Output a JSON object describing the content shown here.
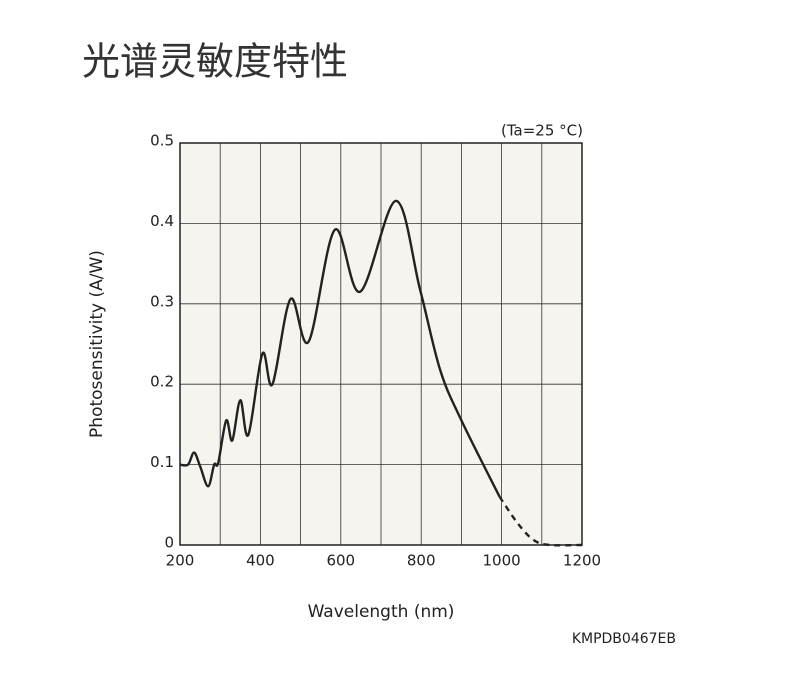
{
  "chart_data": {
    "type": "line",
    "title": "光谱灵敏度特性",
    "annotation": "(Ta=25 °C)",
    "code": "KMPDB0467EB",
    "xlabel": "Wavelength (nm)",
    "ylabel": "Photosensitivity (A/W)",
    "xlim": [
      200,
      1200
    ],
    "xticks": [
      200,
      400,
      600,
      800,
      1000,
      1200
    ],
    "x_minor_grid": [
      300,
      500,
      700,
      900,
      1100
    ],
    "ylim": [
      0,
      0.5
    ],
    "yticks": [
      0,
      0.1,
      0.2,
      0.3,
      0.4,
      0.5
    ],
    "grid": true,
    "color": "#222",
    "background": "#f5f4ee",
    "series": [
      {
        "dashed": false,
        "x": [
          200,
          220,
          235,
          250,
          270,
          285,
          295,
          315,
          330,
          350,
          370,
          405,
          430,
          475,
          520,
          585,
          648,
          737,
          797,
          847,
          900,
          995
        ],
        "values": [
          0.1,
          0.1,
          0.115,
          0.098,
          0.073,
          0.1,
          0.102,
          0.155,
          0.13,
          0.18,
          0.137,
          0.238,
          0.2,
          0.306,
          0.253,
          0.392,
          0.315,
          0.428,
          0.318,
          0.218,
          0.155,
          0.06
        ]
      },
      {
        "dashed": true,
        "x": [
          995,
          1040,
          1080,
          1120,
          1200
        ],
        "values": [
          0.06,
          0.027,
          0.006,
          0,
          0
        ]
      }
    ]
  }
}
